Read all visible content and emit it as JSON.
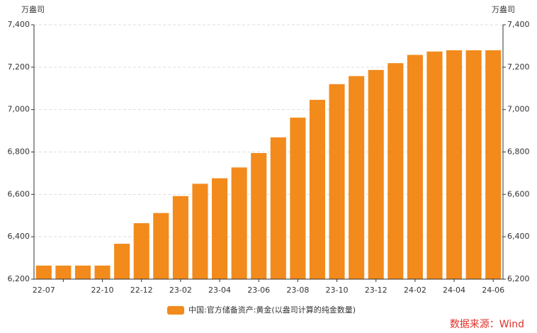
{
  "chart_data": {
    "type": "bar",
    "y_unit": "万盎司",
    "y2_unit": "万盎司",
    "categories": [
      "22-07",
      null,
      null,
      "22-10",
      null,
      "22-12",
      null,
      "23-02",
      null,
      "23-04",
      null,
      "23-06",
      null,
      "23-08",
      null,
      "23-10",
      null,
      "23-12",
      null,
      "24-02",
      null,
      "24-04",
      null,
      "24-06"
    ],
    "series": [
      {
        "name": "中国:官方储备资产:黄金(以盎司计算的纯金数量)",
        "color": "#f28a1c",
        "values": [
          6264,
          6264,
          6264,
          6264,
          6367,
          6464,
          6512,
          6592,
          6650,
          6676,
          6727,
          6795,
          6869,
          6962,
          7046,
          7120,
          7158,
          7187,
          7219,
          7258,
          7274,
          7280,
          7280,
          7280
        ]
      }
    ],
    "ylim": [
      6200,
      7400
    ],
    "yticks": [
      {
        "value": 6200,
        "label": "6,200"
      },
      {
        "value": 6400,
        "label": "6,400"
      },
      {
        "value": 6600,
        "label": "6,600"
      },
      {
        "value": 6800,
        "label": "6,800"
      },
      {
        "value": 7000,
        "label": "7,000"
      },
      {
        "value": 7200,
        "label": "7,200"
      },
      {
        "value": 7400,
        "label": "7,400"
      }
    ],
    "y2lim": [
      6200,
      7400
    ],
    "y2ticks": [
      {
        "value": 6200,
        "label": "6,200"
      },
      {
        "value": 6400,
        "label": "6,400"
      },
      {
        "value": 6600,
        "label": "6,600"
      },
      {
        "value": 6800,
        "label": "6,800"
      },
      {
        "value": 7000,
        "label": "7,000"
      },
      {
        "value": 7200,
        "label": "7,200"
      },
      {
        "value": 7400,
        "label": "7,400"
      }
    ],
    "grid": true,
    "legend": "bottom",
    "source": "数据来源：Wind"
  }
}
